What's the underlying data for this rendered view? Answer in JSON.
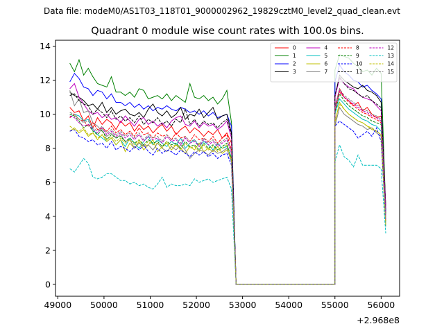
{
  "chart_data": {
    "type": "line",
    "suptitle": "Data file: modeM0/AS1T03_118T01_9000002962_19829cztM0_level2_quad_clean.evt",
    "title": "Quadrant 0 module wise count rates with 100.0s bins.",
    "xlabel": "",
    "ylabel": "",
    "offset_label": "+2.968e8",
    "xlim": [
      48950,
      56400
    ],
    "ylim": [
      -0.7,
      14.35
    ],
    "xticks": [
      49000,
      50000,
      51000,
      52000,
      53000,
      54000,
      55000,
      56000
    ],
    "xtick_labels": [
      "49000",
      "50000",
      "51000",
      "52000",
      "53000",
      "54000",
      "55000",
      "56000"
    ],
    "yticks": [
      0,
      2,
      4,
      6,
      8,
      10,
      12,
      14
    ],
    "ytick_labels": [
      "0",
      "2",
      "4",
      "6",
      "8",
      "10",
      "12",
      "14"
    ],
    "legend_position": "top-right",
    "x_first": [
      49260,
      49360,
      49460,
      49560,
      49660,
      49760,
      49860,
      49960,
      50060,
      50160,
      50260,
      50360,
      50460,
      50560,
      50660,
      50760,
      50860,
      50960,
      51060,
      51160,
      51260,
      51360,
      51460,
      51560,
      51660,
      51760,
      51860,
      51960,
      52060,
      52160,
      52260,
      52360,
      52460,
      52560,
      52660,
      52760
    ],
    "gap_x": [
      52860,
      55000
    ],
    "x_second": [
      55000,
      55100,
      55200,
      55300,
      55400,
      55500,
      55600,
      55700,
      55800,
      55900,
      56000,
      56100
    ],
    "series": [
      {
        "name": "0",
        "color": "#ff0000",
        "dash": "solid",
        "first": [
          10.4,
          10.1,
          10.2,
          9.6,
          9.9,
          9.2,
          9.8,
          9.4,
          9.7,
          9.5,
          9.1,
          9.6,
          9.3,
          9.5,
          9.0,
          9.4,
          9.1,
          9.3,
          8.9,
          9.2,
          9.4,
          9.0,
          9.3,
          8.8,
          9.1,
          9.3,
          8.9,
          9.2,
          9.0,
          8.7,
          9.0,
          8.8,
          9.1,
          8.6,
          8.9,
          8.3
        ],
        "second": [
          10.4,
          11.5,
          11.0,
          10.8,
          10.5,
          10.7,
          10.2,
          10.4,
          10.0,
          9.8,
          9.9,
          4.2
        ]
      },
      {
        "name": "1",
        "color": "#008000",
        "dash": "solid",
        "first": [
          13.0,
          12.5,
          13.2,
          12.3,
          12.7,
          12.2,
          11.8,
          11.7,
          11.6,
          12.2,
          11.3,
          11.3,
          11.1,
          11.3,
          11.0,
          11.5,
          11.4,
          10.9,
          11.0,
          11.1,
          10.9,
          11.2,
          10.8,
          11.1,
          10.9,
          10.7,
          11.8,
          11.0,
          10.9,
          11.1,
          10.8,
          11.0,
          10.6,
          10.9,
          11.4,
          9.5
        ],
        "second": [
          12.6,
          13.5,
          13.4,
          13.3,
          13.0,
          12.8,
          12.5,
          12.6,
          12.3,
          12.7,
          12.4,
          4.4
        ]
      },
      {
        "name": "2",
        "color": "#0000ff",
        "dash": "solid",
        "first": [
          11.9,
          12.4,
          12.1,
          11.6,
          11.5,
          11.1,
          11.4,
          11.3,
          10.9,
          11.2,
          10.7,
          10.7,
          10.5,
          10.7,
          10.4,
          10.6,
          10.3,
          10.5,
          10.2,
          10.4,
          10.3,
          10.5,
          10.3,
          10.2,
          10.4,
          10.3,
          10.1,
          10.2,
          10.0,
          10.2,
          9.9,
          10.1,
          9.8,
          9.9,
          10.0,
          9.3
        ],
        "second": [
          11.9,
          12.9,
          12.5,
          12.3,
          12.0,
          11.9,
          11.6,
          11.7,
          11.4,
          11.2,
          10.9,
          4.3
        ]
      },
      {
        "name": "3",
        "color": "#000000",
        "dash": "solid",
        "first": [
          11.3,
          11.1,
          11.0,
          10.8,
          10.5,
          10.6,
          10.3,
          10.7,
          10.1,
          10.4,
          10.0,
          10.2,
          10.3,
          10.0,
          9.9,
          10.1,
          9.8,
          10.3,
          10.6,
          10.1,
          9.9,
          10.2,
          9.8,
          10.0,
          10.4,
          9.7,
          10.0,
          9.9,
          10.3,
          9.8,
          10.1,
          10.4,
          9.7,
          9.9,
          10.0,
          8.9
        ],
        "second": [
          11.0,
          12.3,
          12.0,
          11.8,
          11.6,
          11.5,
          11.7,
          11.4,
          11.3,
          11.1,
          10.7,
          4.6
        ]
      },
      {
        "name": "4",
        "color": "#bf00bf",
        "dash": "solid",
        "first": [
          11.5,
          11.8,
          11.0,
          10.6,
          10.2,
          10.0,
          10.1,
          9.8,
          10.0,
          9.7,
          9.8,
          9.5,
          9.9,
          9.6,
          9.3,
          9.7,
          9.8,
          9.4,
          9.6,
          9.3,
          9.5,
          9.2,
          9.6,
          9.8,
          9.9,
          9.4,
          9.3,
          9.6,
          9.2,
          9.5,
          9.3,
          9.4,
          9.1,
          9.3,
          9.6,
          8.6
        ],
        "second": [
          11.0,
          12.1,
          11.8,
          11.6,
          11.5,
          11.2,
          11.0,
          10.9,
          10.8,
          10.5,
          10.2,
          4.5
        ]
      },
      {
        "name": "5",
        "color": "#00bfbf",
        "dash": "solid",
        "first": [
          9.8,
          10.0,
          9.9,
          9.6,
          9.7,
          9.1,
          8.8,
          8.6,
          8.4,
          8.6,
          8.2,
          8.5,
          8.1,
          8.6,
          8.3,
          8.0,
          8.4,
          8.7,
          8.2,
          8.5,
          8.3,
          8.1,
          8.4,
          8.2,
          8.6,
          8.0,
          8.3,
          8.5,
          8.1,
          8.4,
          8.2,
          7.9,
          8.3,
          8.0,
          8.1,
          7.5
        ],
        "second": [
          10.0,
          10.9,
          10.6,
          10.3,
          10.1,
          9.9,
          9.7,
          9.6,
          9.4,
          9.3,
          9.0,
          3.5
        ]
      },
      {
        "name": "6",
        "color": "#bfbf00",
        "dash": "solid",
        "first": [
          9.0,
          9.2,
          8.9,
          9.1,
          8.7,
          8.9,
          8.5,
          8.8,
          8.4,
          8.6,
          8.2,
          8.5,
          7.8,
          8.3,
          8.0,
          8.4,
          7.9,
          8.2,
          8.5,
          7.8,
          8.1,
          8.3,
          7.9,
          8.2,
          8.0,
          7.7,
          8.1,
          7.9,
          8.3,
          7.8,
          8.0,
          7.8,
          8.1,
          7.7,
          7.9,
          7.4
        ],
        "second": [
          9.5,
          10.7,
          10.3,
          10.0,
          9.8,
          9.6,
          9.5,
          9.3,
          9.1,
          9.0,
          8.8,
          3.6
        ]
      },
      {
        "name": "7",
        "color": "#808080",
        "dash": "solid",
        "first": [
          11.4,
          10.5,
          10.9,
          10.1,
          10.2,
          9.5,
          9.3,
          9.0,
          8.7,
          8.9,
          8.6,
          8.8,
          8.4,
          8.5,
          8.0,
          8.3,
          8.1,
          8.2,
          7.9,
          8.3,
          8.0,
          7.8,
          8.1,
          7.9,
          8.2,
          7.9,
          7.4,
          7.7,
          7.9,
          7.8,
          7.6,
          7.9,
          7.7,
          7.8,
          8.0,
          7.2
        ],
        "second": [
          9.3,
          10.4,
          10.0,
          9.8,
          9.6,
          9.4,
          9.3,
          9.1,
          9.2,
          8.9,
          8.7,
          3.4
        ]
      },
      {
        "name": "8",
        "color": "#ff0000",
        "dash": "dashed",
        "first": [
          9.8,
          10.0,
          9.7,
          9.6,
          9.3,
          9.5,
          9.1,
          9.2,
          9.0,
          9.3,
          8.9,
          9.1,
          8.8,
          9.0,
          8.7,
          9.2,
          8.8,
          8.9,
          8.6,
          8.9,
          8.7,
          8.8,
          8.5,
          8.9,
          8.6,
          8.7,
          8.4,
          8.8,
          8.5,
          8.6,
          8.4,
          8.7,
          8.3,
          8.6,
          8.8,
          7.9
        ],
        "second": [
          10.2,
          11.3,
          11.0,
          10.7,
          10.5,
          10.3,
          10.1,
          10.0,
          9.8,
          9.7,
          9.5,
          3.9
        ]
      },
      {
        "name": "9",
        "color": "#008000",
        "dash": "dashed",
        "first": [
          10.0,
          9.9,
          9.6,
          9.2,
          9.4,
          9.0,
          8.8,
          9.1,
          8.5,
          8.8,
          8.6,
          8.7,
          8.4,
          8.6,
          8.3,
          8.5,
          8.2,
          8.5,
          8.3,
          8.4,
          8.1,
          8.4,
          8.2,
          8.3,
          8.0,
          8.4,
          8.1,
          8.2,
          7.9,
          8.3,
          8.0,
          8.2,
          7.9,
          8.1,
          8.3,
          7.4
        ],
        "second": [
          10.1,
          11.2,
          10.8,
          10.5,
          10.3,
          10.1,
          9.9,
          9.8,
          9.6,
          9.5,
          9.4,
          3.7
        ]
      },
      {
        "name": "10",
        "color": "#0000ff",
        "dash": "dashed",
        "first": [
          9.0,
          9.1,
          8.7,
          8.6,
          8.4,
          8.5,
          8.2,
          8.3,
          8.0,
          8.4,
          7.9,
          8.1,
          8.0,
          7.8,
          8.1,
          7.9,
          8.2,
          7.8,
          7.6,
          8.0,
          7.7,
          7.9,
          7.8,
          7.6,
          7.9,
          7.7,
          7.5,
          7.8,
          7.6,
          7.8,
          7.5,
          7.7,
          7.4,
          7.6,
          7.7,
          7.0
        ],
        "second": [
          9.3,
          9.6,
          9.4,
          9.2,
          9.0,
          8.6,
          8.8,
          9.0,
          8.7,
          9.2,
          8.4,
          3.8
        ]
      },
      {
        "name": "11",
        "color": "#000000",
        "dash": "dashed",
        "first": [
          11.1,
          11.2,
          10.8,
          10.6,
          10.5,
          10.0,
          10.3,
          10.1,
          9.8,
          10.2,
          9.7,
          9.9,
          9.6,
          9.8,
          9.5,
          9.9,
          9.4,
          9.7,
          9.5,
          9.8,
          9.4,
          9.6,
          9.3,
          9.7,
          9.5,
          10.3,
          9.4,
          9.7,
          9.3,
          9.6,
          9.4,
          9.5,
          9.2,
          9.5,
          9.7,
          8.8
        ],
        "second": [
          11.1,
          12.2,
          11.8,
          11.5,
          11.4,
          11.2,
          11.0,
          11.1,
          10.8,
          10.6,
          10.4,
          4.1
        ]
      },
      {
        "name": "12",
        "color": "#bf00bf",
        "dash": "dashed",
        "first": [
          9.9,
          9.8,
          9.5,
          9.3,
          9.4,
          9.1,
          8.9,
          9.2,
          8.8,
          9.0,
          8.7,
          8.9,
          8.6,
          8.8,
          8.5,
          8.8,
          8.4,
          8.7,
          8.5,
          8.6,
          8.3,
          8.7,
          8.4,
          8.5,
          8.2,
          8.6,
          8.3,
          8.4,
          8.1,
          8.5,
          8.2,
          8.4,
          8.1,
          8.3,
          8.5,
          7.7
        ],
        "second": [
          10.3,
          11.4,
          11.0,
          10.8,
          10.6,
          10.4,
          10.2,
          10.1,
          9.9,
          9.8,
          9.6,
          3.8
        ]
      },
      {
        "name": "13",
        "color": "#00bfbf",
        "dash": "dashed",
        "first": [
          6.8,
          6.6,
          7.0,
          7.4,
          7.1,
          6.3,
          6.2,
          6.3,
          6.5,
          6.5,
          6.3,
          6.1,
          6.1,
          5.9,
          6.0,
          5.8,
          5.9,
          5.7,
          5.6,
          5.9,
          6.3,
          5.7,
          5.9,
          5.8,
          5.8,
          5.9,
          5.8,
          6.2,
          6.0,
          6.1,
          6.2,
          6.0,
          6.1,
          6.2,
          6.3,
          5.6
        ],
        "second": [
          7.2,
          8.2,
          7.5,
          7.3,
          6.9,
          7.6,
          7.0,
          7.0,
          7.0,
          7.0,
          6.8,
          3.0
        ]
      },
      {
        "name": "14",
        "color": "#bfbf00",
        "dash": "dashed",
        "first": [
          9.3,
          9.1,
          9.0,
          9.2,
          8.8,
          8.9,
          8.6,
          8.8,
          8.5,
          8.7,
          8.4,
          8.6,
          8.3,
          8.5,
          8.2,
          8.5,
          8.1,
          8.4,
          8.2,
          8.3,
          8.0,
          8.4,
          8.1,
          8.2,
          7.9,
          8.3,
          8.0,
          8.1,
          7.8,
          8.2,
          7.9,
          8.1,
          7.8,
          8.0,
          8.2,
          7.3
        ],
        "second": [
          9.6,
          10.6,
          10.3,
          10.0,
          9.8,
          9.6,
          9.5,
          9.3,
          9.2,
          9.0,
          8.8,
          3.5
        ]
      },
      {
        "name": "15",
        "color": "#808080",
        "dash": "dashed",
        "first": [
          10.1,
          10.0,
          9.7,
          9.5,
          9.6,
          9.2,
          9.0,
          9.3,
          8.9,
          9.1,
          8.8,
          9.0,
          8.7,
          8.9,
          8.6,
          8.9,
          8.5,
          8.8,
          8.6,
          8.7,
          8.4,
          8.8,
          8.5,
          8.6,
          8.3,
          8.7,
          8.4,
          8.5,
          8.2,
          8.6,
          8.3,
          8.5,
          8.2,
          8.4,
          8.6,
          7.8
        ],
        "second": [
          10.4,
          11.5,
          11.1,
          10.9,
          10.7,
          10.5,
          10.3,
          10.2,
          10.0,
          9.9,
          9.7,
          3.9
        ]
      }
    ]
  }
}
